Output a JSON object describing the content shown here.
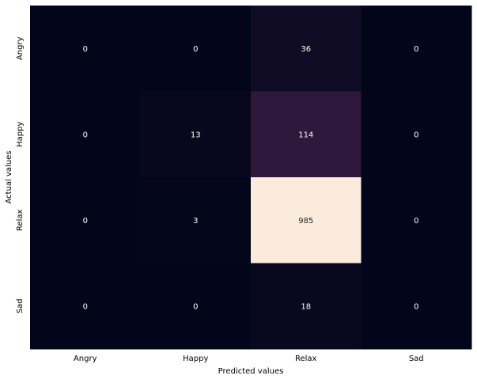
{
  "chart_data": {
    "type": "heatmap",
    "title": "",
    "xlabel": "Predicted values",
    "ylabel": "Actual values",
    "x_categories": [
      "Angry",
      "Happy",
      "Relax",
      "Sad"
    ],
    "y_categories": [
      "Angry",
      "Happy",
      "Relax",
      "Sad"
    ],
    "values": [
      [
        0,
        0,
        36,
        0
      ],
      [
        0,
        13,
        114,
        0
      ],
      [
        0,
        3,
        985,
        0
      ],
      [
        0,
        0,
        18,
        0
      ]
    ],
    "colorbar": false,
    "colormap": "rocket",
    "value_range": [
      0,
      985
    ],
    "annotation_light_color": "#ffffff",
    "annotation_dark_color": "#262626",
    "grid": false
  }
}
